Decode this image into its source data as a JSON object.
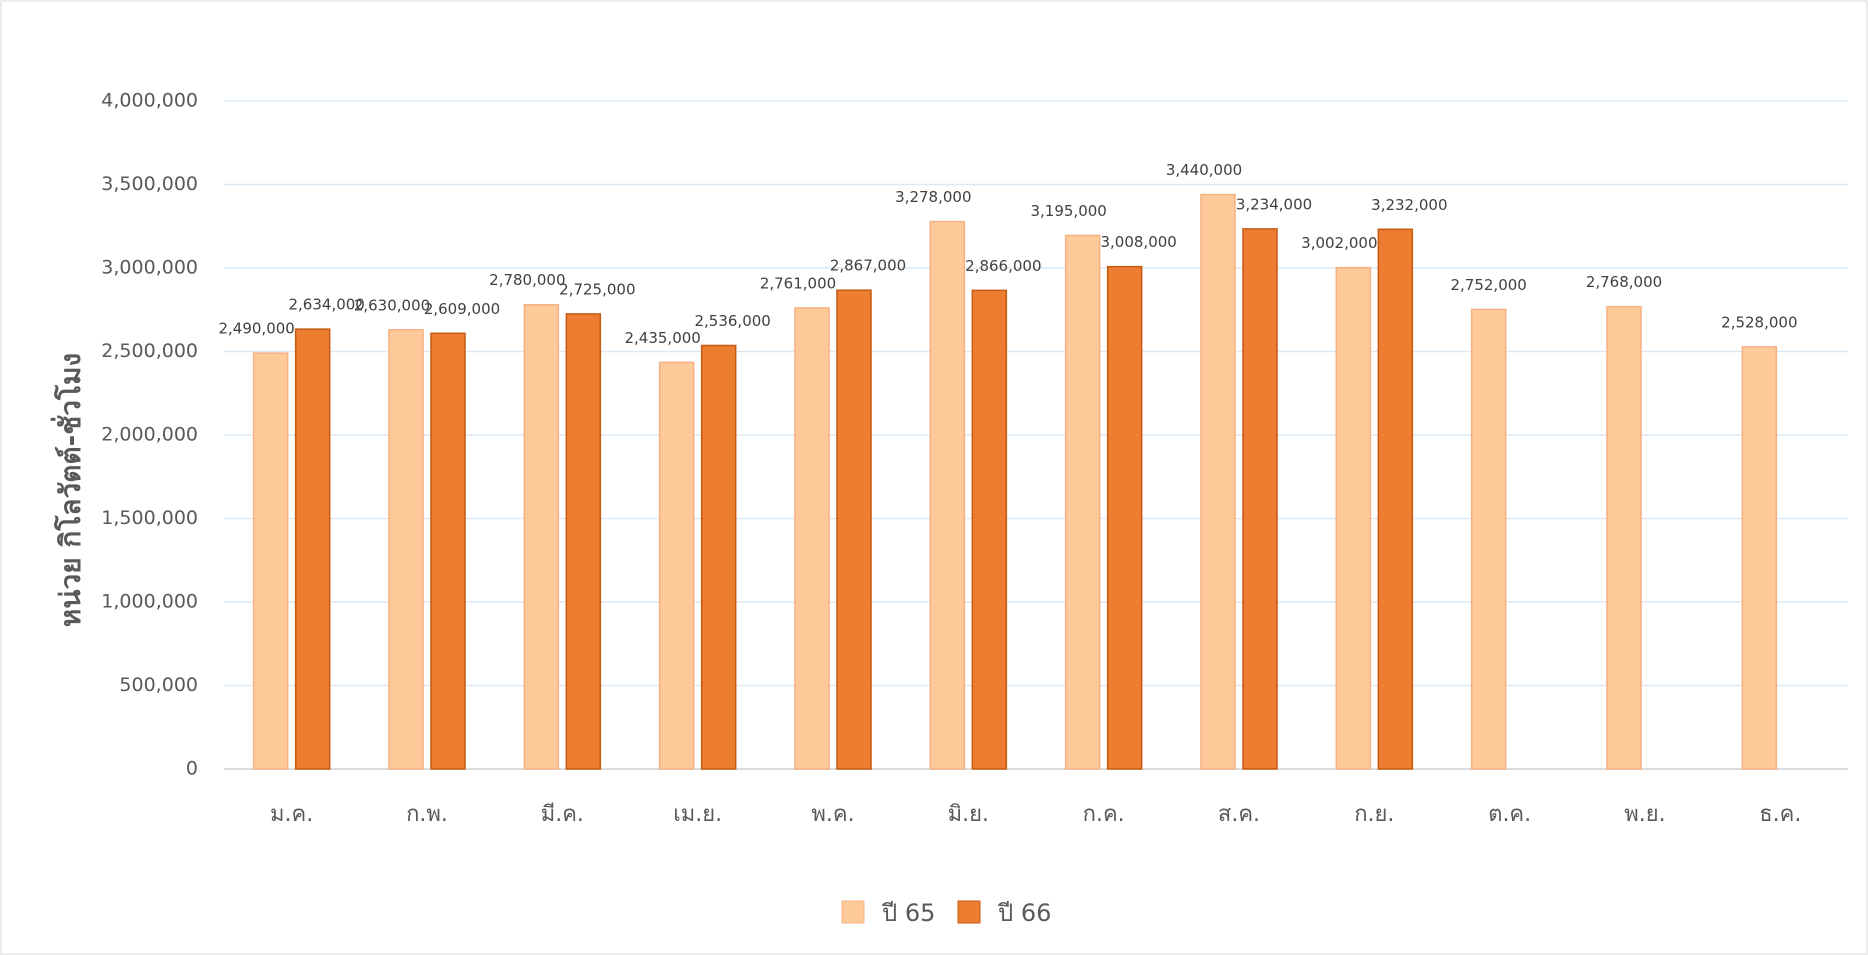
{
  "chart_data": {
    "type": "bar",
    "y_label": "หน่วย กิโลวัตต์-ชั่วโมง",
    "categories": [
      "ม.ค.",
      "ก.พ.",
      "มี.ค.",
      "เม.ย.",
      "พ.ค.",
      "มิ.ย.",
      "ก.ค.",
      "ส.ค.",
      "ก.ย.",
      "ต.ค.",
      "พ.ย.",
      "ธ.ค."
    ],
    "series": [
      {
        "name": "ปี 65",
        "color": "#FFCA99",
        "edge": "#F4B183",
        "values": [
          2490000,
          2630000,
          2780000,
          2435000,
          2761000,
          3278000,
          3195000,
          3440000,
          3002000,
          2752000,
          2768000,
          2528000
        ],
        "value_labels": [
          "2,490,000",
          "2,630,000",
          "2,780,000",
          "2,435,000",
          "2,761,000",
          "3,278,000",
          "3,195,000",
          "3,440,000",
          "3,002,000",
          "2,752,000",
          "2,768,000",
          "2,528,000"
        ]
      },
      {
        "name": "ปี 66",
        "color": "#ED7D31",
        "edge": "#C55A11",
        "values": [
          2634000,
          2609000,
          2725000,
          2536000,
          2867000,
          2866000,
          3008000,
          3234000,
          3232000,
          null,
          null,
          null
        ],
        "value_labels": [
          "2,634,000",
          "2,609,000",
          "2,725,000",
          "2,536,000",
          "2,867,000",
          "2,866,000",
          "3,008,000",
          "3,234,000",
          "3,232,000",
          null,
          null,
          null
        ]
      }
    ],
    "ylim": [
      0,
      4000000
    ],
    "yticks": [
      0,
      {
        "value": 500000,
        "label": "500,000"
      },
      {
        "value": 1000000,
        "label": "1,000,000"
      },
      {
        "value": 1500000,
        "label": "1,500,000"
      },
      {
        "value": 2000000,
        "label": "2,000,000"
      },
      {
        "value": 2500000,
        "label": "2,500,000"
      },
      {
        "value": 3000000,
        "label": "3,000,000"
      },
      {
        "value": 3500000,
        "label": "3,500,000"
      },
      {
        "value": 4000000,
        "label": "4,000,000"
      }
    ],
    "grid": true,
    "legend": "bottom"
  }
}
